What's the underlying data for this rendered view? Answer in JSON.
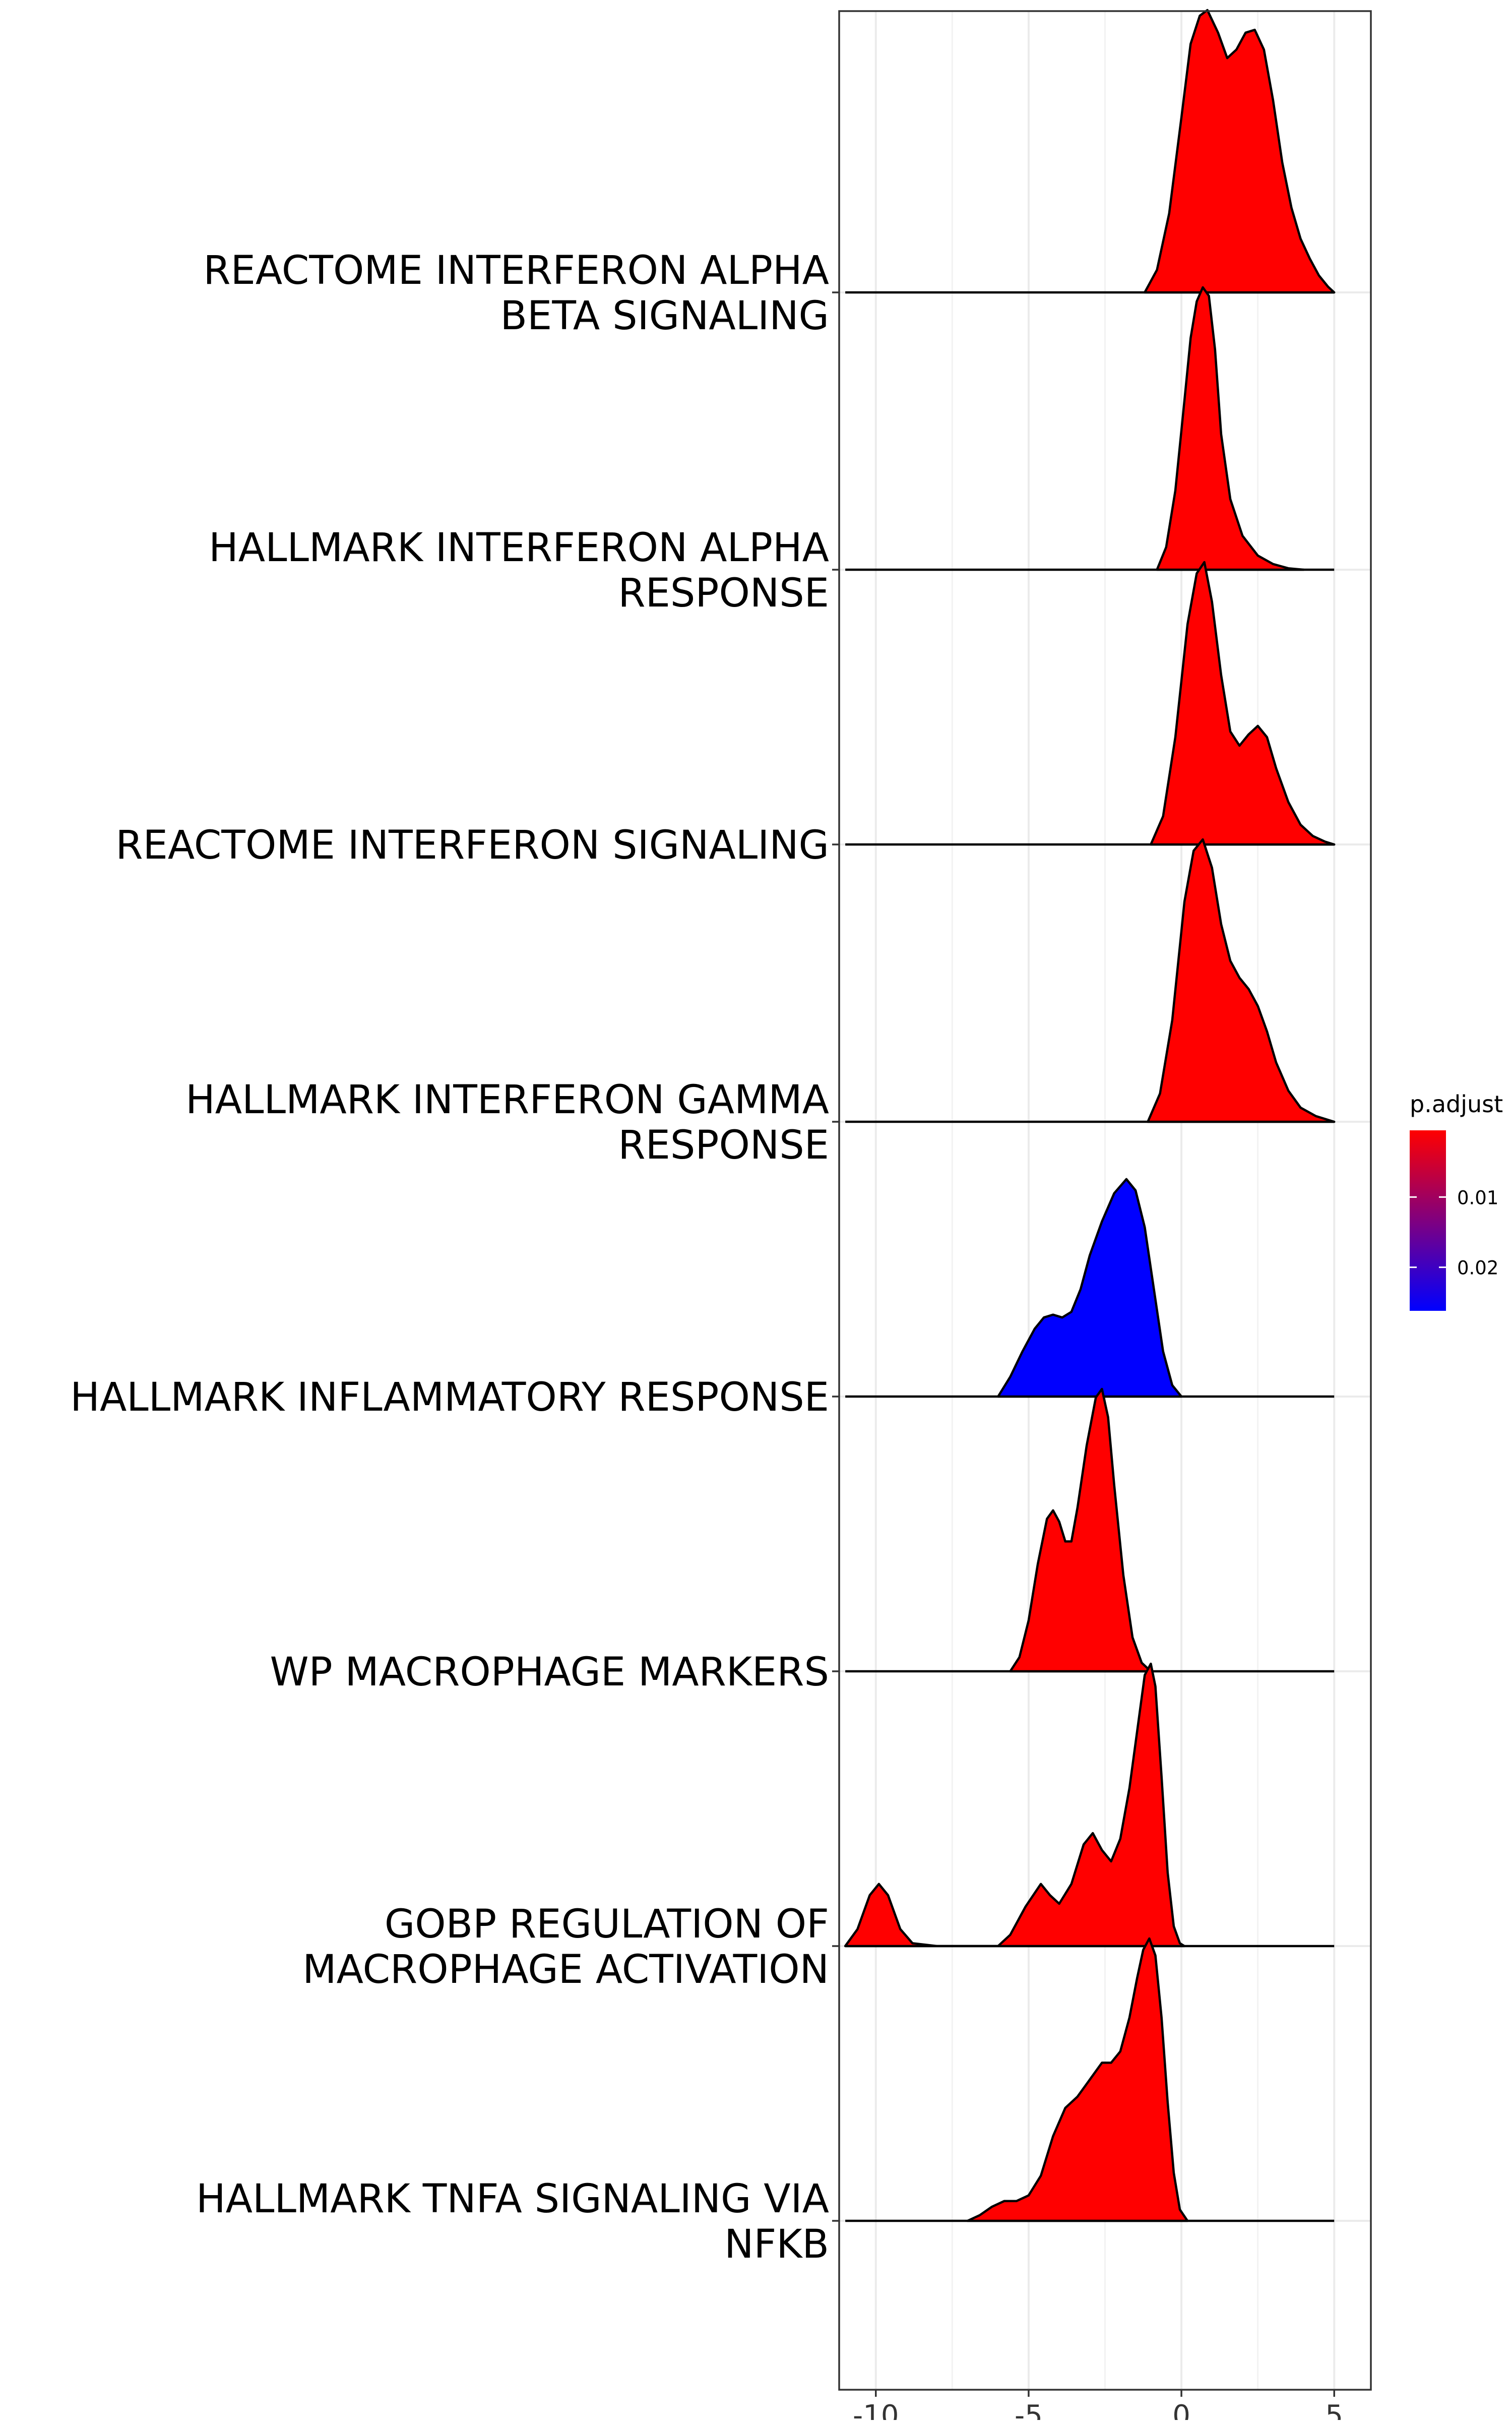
{
  "chart_data": {
    "type": "ridgeline",
    "xlabel": "",
    "ylabel": "",
    "xlim": [
      -11.2,
      6.2
    ],
    "x_ticks": [
      -10,
      -5,
      0,
      5
    ],
    "x_tick_labels": [
      "-10",
      "-5",
      "0",
      "5"
    ],
    "x_grid_minor": [
      -7.5,
      -2.5,
      2.5
    ],
    "x_range": [
      -11,
      5
    ],
    "grid": true,
    "legend": {
      "title": "p.adjust",
      "position": "right",
      "type": "colorbar",
      "min_color": "#FF0000",
      "max_color": "#0000FF",
      "ticks": [
        0.01,
        0.02
      ],
      "tick_labels": [
        "0.01",
        "0.02"
      ],
      "range": [
        0.0005,
        0.0262
      ]
    },
    "series": [
      {
        "name": "REACTOME INTERFERON ALPHA\nBETA SIGNALING",
        "color": "#FF0000",
        "curve": [
          [
            -1.2,
            0
          ],
          [
            -0.8,
            0.08
          ],
          [
            -0.4,
            0.28
          ],
          [
            0,
            0.62
          ],
          [
            0.3,
            0.88
          ],
          [
            0.6,
            0.98
          ],
          [
            0.85,
            1.0
          ],
          [
            1.2,
            0.92
          ],
          [
            1.5,
            0.83
          ],
          [
            1.8,
            0.86
          ],
          [
            2.1,
            0.92
          ],
          [
            2.4,
            0.93
          ],
          [
            2.7,
            0.86
          ],
          [
            3.0,
            0.68
          ],
          [
            3.3,
            0.46
          ],
          [
            3.6,
            0.3
          ],
          [
            3.9,
            0.19
          ],
          [
            4.2,
            0.12
          ],
          [
            4.5,
            0.06
          ],
          [
            4.8,
            0.02
          ],
          [
            5,
            0
          ]
        ]
      },
      {
        "name": "HALLMARK INTERFERON ALPHA\nRESPONSE",
        "color": "#FF0000",
        "curve": [
          [
            -0.8,
            0
          ],
          [
            -0.5,
            0.08
          ],
          [
            -0.2,
            0.28
          ],
          [
            0.1,
            0.6
          ],
          [
            0.3,
            0.82
          ],
          [
            0.5,
            0.95
          ],
          [
            0.7,
            1.0
          ],
          [
            0.9,
            0.97
          ],
          [
            1.1,
            0.78
          ],
          [
            1.3,
            0.48
          ],
          [
            1.6,
            0.25
          ],
          [
            2.0,
            0.12
          ],
          [
            2.5,
            0.05
          ],
          [
            3.0,
            0.02
          ],
          [
            3.5,
            0.005
          ],
          [
            4,
            0
          ]
        ]
      },
      {
        "name": "REACTOME INTERFERON SIGNALING",
        "color": "#FF0000",
        "curve": [
          [
            -1.0,
            0
          ],
          [
            -0.6,
            0.1
          ],
          [
            -0.2,
            0.38
          ],
          [
            0.2,
            0.78
          ],
          [
            0.5,
            0.96
          ],
          [
            0.75,
            1.0
          ],
          [
            1.0,
            0.86
          ],
          [
            1.3,
            0.6
          ],
          [
            1.6,
            0.4
          ],
          [
            1.9,
            0.35
          ],
          [
            2.2,
            0.39
          ],
          [
            2.5,
            0.42
          ],
          [
            2.8,
            0.38
          ],
          [
            3.1,
            0.27
          ],
          [
            3.5,
            0.15
          ],
          [
            3.9,
            0.07
          ],
          [
            4.3,
            0.03
          ],
          [
            4.7,
            0.01
          ],
          [
            5,
            0
          ]
        ]
      },
      {
        "name": "HALLMARK INTERFERON GAMMA\nRESPONSE",
        "color": "#FF0000",
        "curve": [
          [
            -1.1,
            0
          ],
          [
            -0.7,
            0.1
          ],
          [
            -0.3,
            0.36
          ],
          [
            0.1,
            0.78
          ],
          [
            0.4,
            0.96
          ],
          [
            0.7,
            1.0
          ],
          [
            1.0,
            0.9
          ],
          [
            1.3,
            0.7
          ],
          [
            1.6,
            0.57
          ],
          [
            1.9,
            0.51
          ],
          [
            2.2,
            0.47
          ],
          [
            2.5,
            0.41
          ],
          [
            2.8,
            0.32
          ],
          [
            3.1,
            0.21
          ],
          [
            3.5,
            0.11
          ],
          [
            3.9,
            0.05
          ],
          [
            4.4,
            0.02
          ],
          [
            5,
            0
          ]
        ]
      },
      {
        "name": "HALLMARK INFLAMMATORY RESPONSE",
        "color": "#0000FF",
        "curve": [
          [
            -6.0,
            0
          ],
          [
            -5.6,
            0.07
          ],
          [
            -5.2,
            0.16
          ],
          [
            -4.8,
            0.24
          ],
          [
            -4.5,
            0.28
          ],
          [
            -4.2,
            0.29
          ],
          [
            -3.9,
            0.28
          ],
          [
            -3.6,
            0.3
          ],
          [
            -3.3,
            0.38
          ],
          [
            -3.0,
            0.5
          ],
          [
            -2.6,
            0.62
          ],
          [
            -2.2,
            0.72
          ],
          [
            -1.8,
            0.77
          ],
          [
            -1.5,
            0.73
          ],
          [
            -1.2,
            0.6
          ],
          [
            -0.9,
            0.38
          ],
          [
            -0.6,
            0.16
          ],
          [
            -0.3,
            0.04
          ],
          [
            0,
            0
          ]
        ]
      },
      {
        "name": "WP MACROPHAGE MARKERS",
        "color": "#FF0000",
        "curve": [
          [
            -5.6,
            0
          ],
          [
            -5.3,
            0.05
          ],
          [
            -5.0,
            0.18
          ],
          [
            -4.7,
            0.38
          ],
          [
            -4.4,
            0.54
          ],
          [
            -4.2,
            0.57
          ],
          [
            -4.0,
            0.53
          ],
          [
            -3.8,
            0.46
          ],
          [
            -3.6,
            0.46
          ],
          [
            -3.4,
            0.58
          ],
          [
            -3.1,
            0.8
          ],
          [
            -2.8,
            0.97
          ],
          [
            -2.6,
            1.0
          ],
          [
            -2.4,
            0.9
          ],
          [
            -2.2,
            0.66
          ],
          [
            -1.9,
            0.34
          ],
          [
            -1.6,
            0.12
          ],
          [
            -1.3,
            0.03
          ],
          [
            -1.0,
            0
          ]
        ]
      },
      {
        "name": "GOBP REGULATION OF\nMACROPHAGE ACTIVATION",
        "color": "#FF0000",
        "curve": [
          [
            -11,
            0
          ],
          [
            -10.6,
            0.06
          ],
          [
            -10.2,
            0.18
          ],
          [
            -9.9,
            0.22
          ],
          [
            -9.6,
            0.18
          ],
          [
            -9.2,
            0.06
          ],
          [
            -8.8,
            0.01
          ],
          [
            -8.0,
            0
          ],
          [
            -6.0,
            0
          ],
          [
            -5.6,
            0.04
          ],
          [
            -5.1,
            0.14
          ],
          [
            -4.6,
            0.22
          ],
          [
            -4.3,
            0.18
          ],
          [
            -4.0,
            0.15
          ],
          [
            -3.6,
            0.22
          ],
          [
            -3.2,
            0.36
          ],
          [
            -2.9,
            0.4
          ],
          [
            -2.6,
            0.34
          ],
          [
            -2.3,
            0.3
          ],
          [
            -2.0,
            0.38
          ],
          [
            -1.7,
            0.56
          ],
          [
            -1.4,
            0.8
          ],
          [
            -1.2,
            0.96
          ],
          [
            -1.0,
            1.0
          ],
          [
            -0.85,
            0.92
          ],
          [
            -0.65,
            0.6
          ],
          [
            -0.45,
            0.26
          ],
          [
            -0.25,
            0.07
          ],
          [
            -0.05,
            0.01
          ],
          [
            0.1,
            0
          ]
        ]
      },
      {
        "name": "HALLMARK TNFA SIGNALING VIA\nNFKB",
        "color": "#FF0000",
        "curve": [
          [
            -7,
            0
          ],
          [
            -6.6,
            0.02
          ],
          [
            -6.2,
            0.05
          ],
          [
            -5.8,
            0.07
          ],
          [
            -5.4,
            0.07
          ],
          [
            -5.0,
            0.09
          ],
          [
            -4.6,
            0.16
          ],
          [
            -4.2,
            0.3
          ],
          [
            -3.8,
            0.4
          ],
          [
            -3.4,
            0.44
          ],
          [
            -3.0,
            0.5
          ],
          [
            -2.6,
            0.56
          ],
          [
            -2.3,
            0.56
          ],
          [
            -2.0,
            0.6
          ],
          [
            -1.7,
            0.72
          ],
          [
            -1.45,
            0.86
          ],
          [
            -1.25,
            0.96
          ],
          [
            -1.05,
            1.0
          ],
          [
            -0.85,
            0.94
          ],
          [
            -0.65,
            0.72
          ],
          [
            -0.45,
            0.42
          ],
          [
            -0.25,
            0.17
          ],
          [
            -0.05,
            0.04
          ],
          [
            0.2,
            0
          ]
        ]
      }
    ]
  }
}
